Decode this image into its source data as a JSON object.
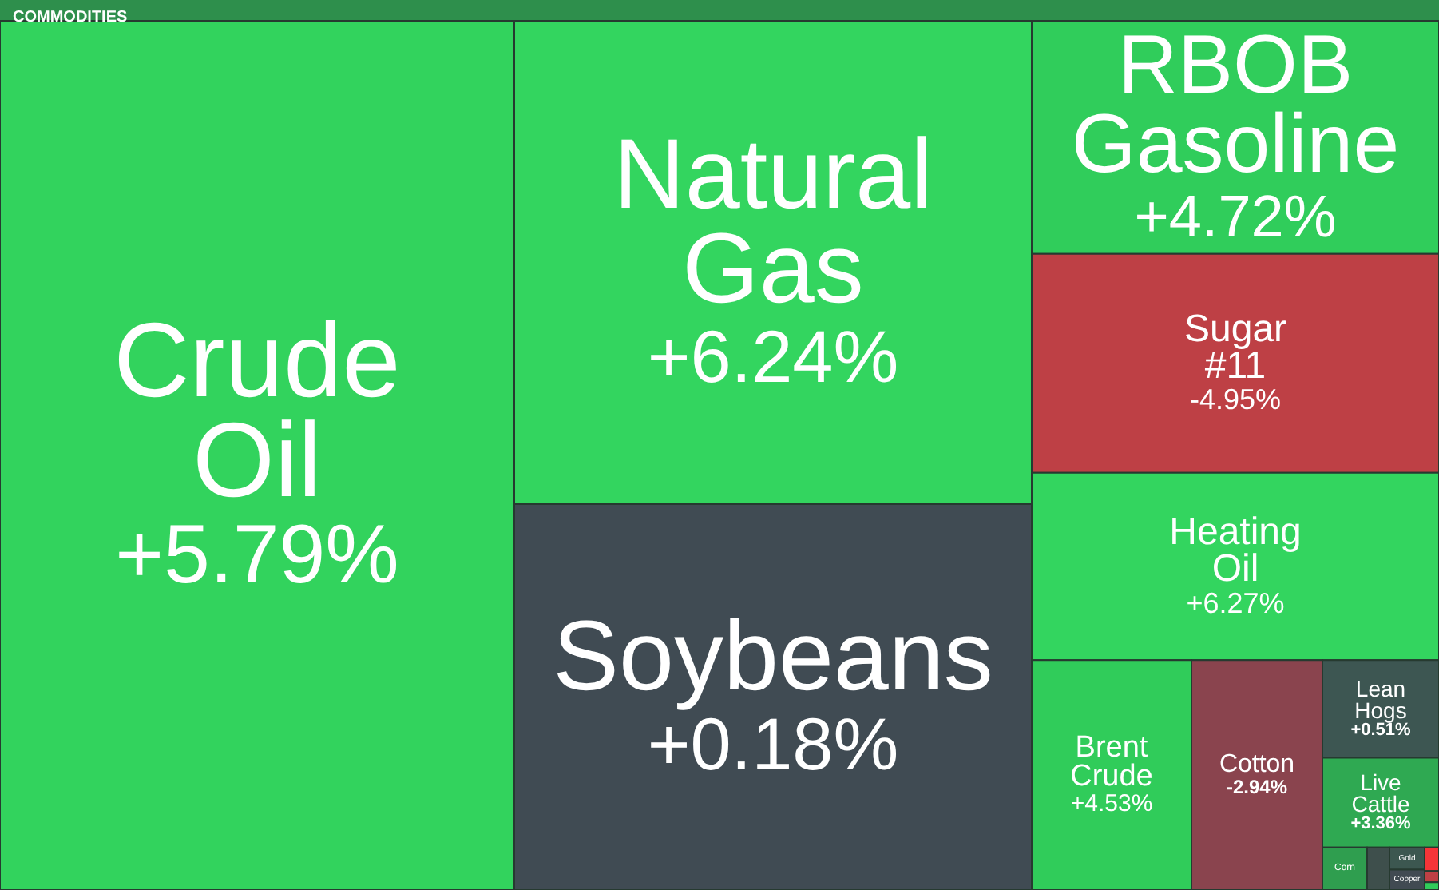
{
  "chart_data": {
    "type": "other",
    "title": "COMMODITIES",
    "categories": [
      "Crude Oil",
      "Natural Gas",
      "Soybeans",
      "RBOB Gasoline",
      "Sugar #11",
      "Heating Oil",
      "Brent Crude",
      "Cotton",
      "Lean Hogs",
      "Live Cattle",
      "Corn",
      null,
      "Gold",
      "Copper",
      null,
      null,
      null
    ],
    "values": [
      5.79,
      6.24,
      0.18,
      4.72,
      -4.95,
      6.27,
      4.53,
      -2.94,
      0.51,
      3.36,
      null,
      null,
      null,
      null,
      null,
      null,
      null
    ],
    "value_labels": [
      "+5.79%",
      "+6.24%",
      "+0.18%",
      "+4.72%",
      "-4.95%",
      "+6.27%",
      "+4.53%",
      "-2.94%",
      "+0.51%",
      "+3.36%",
      null,
      null,
      null,
      null,
      null,
      null,
      null
    ],
    "colors": [
      null,
      null,
      null,
      null,
      null,
      null,
      null,
      null,
      null,
      null,
      "#2f9e4f",
      "#3e4f4c",
      "#3c5750",
      "#414a52",
      "#f63538",
      "#bf4045",
      "#30cc5a"
    ]
  }
}
